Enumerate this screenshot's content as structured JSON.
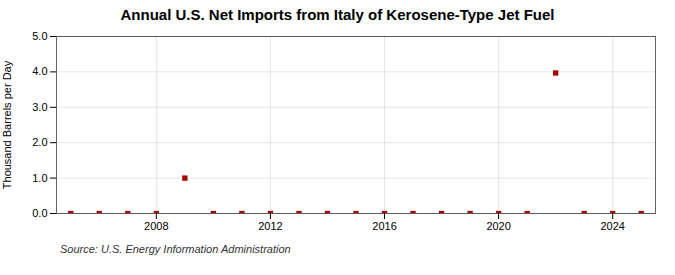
{
  "chart_data": {
    "type": "scatter",
    "title": "Annual U.S. Net Imports from Italy of Kerosene-Type Jet Fuel",
    "ylabel": "Thousand Barrels per Day",
    "caption": "Source: U.S. Energy Information Administration",
    "x": [
      2005,
      2006,
      2007,
      2008,
      2009,
      2010,
      2011,
      2012,
      2013,
      2014,
      2015,
      2016,
      2017,
      2018,
      2019,
      2020,
      2021,
      2022,
      2023,
      2024,
      2025
    ],
    "values": [
      0.0,
      0.0,
      0.0,
      0.0,
      1.0,
      0.0,
      0.0,
      0.0,
      0.0,
      0.0,
      0.0,
      0.0,
      0.0,
      0.0,
      0.0,
      0.0,
      0.0,
      3.97,
      0.0,
      0.0,
      0.0
    ],
    "color": "#aa0000",
    "marker": "square",
    "xlim": [
      2004.5,
      2025.5
    ],
    "xticks": [
      2008,
      2012,
      2016,
      2020,
      2024
    ],
    "ylim": [
      0.0,
      5.0
    ],
    "yticks": [
      {
        "value": 0.0,
        "label": "0.0"
      },
      {
        "value": 1.0,
        "label": "1.0"
      },
      {
        "value": 2.0,
        "label": "2.0"
      },
      {
        "value": 3.0,
        "label": "3.0"
      },
      {
        "value": 4.0,
        "label": "4.0"
      },
      {
        "value": 5.0,
        "label": "5.0"
      }
    ],
    "grid": true
  }
}
